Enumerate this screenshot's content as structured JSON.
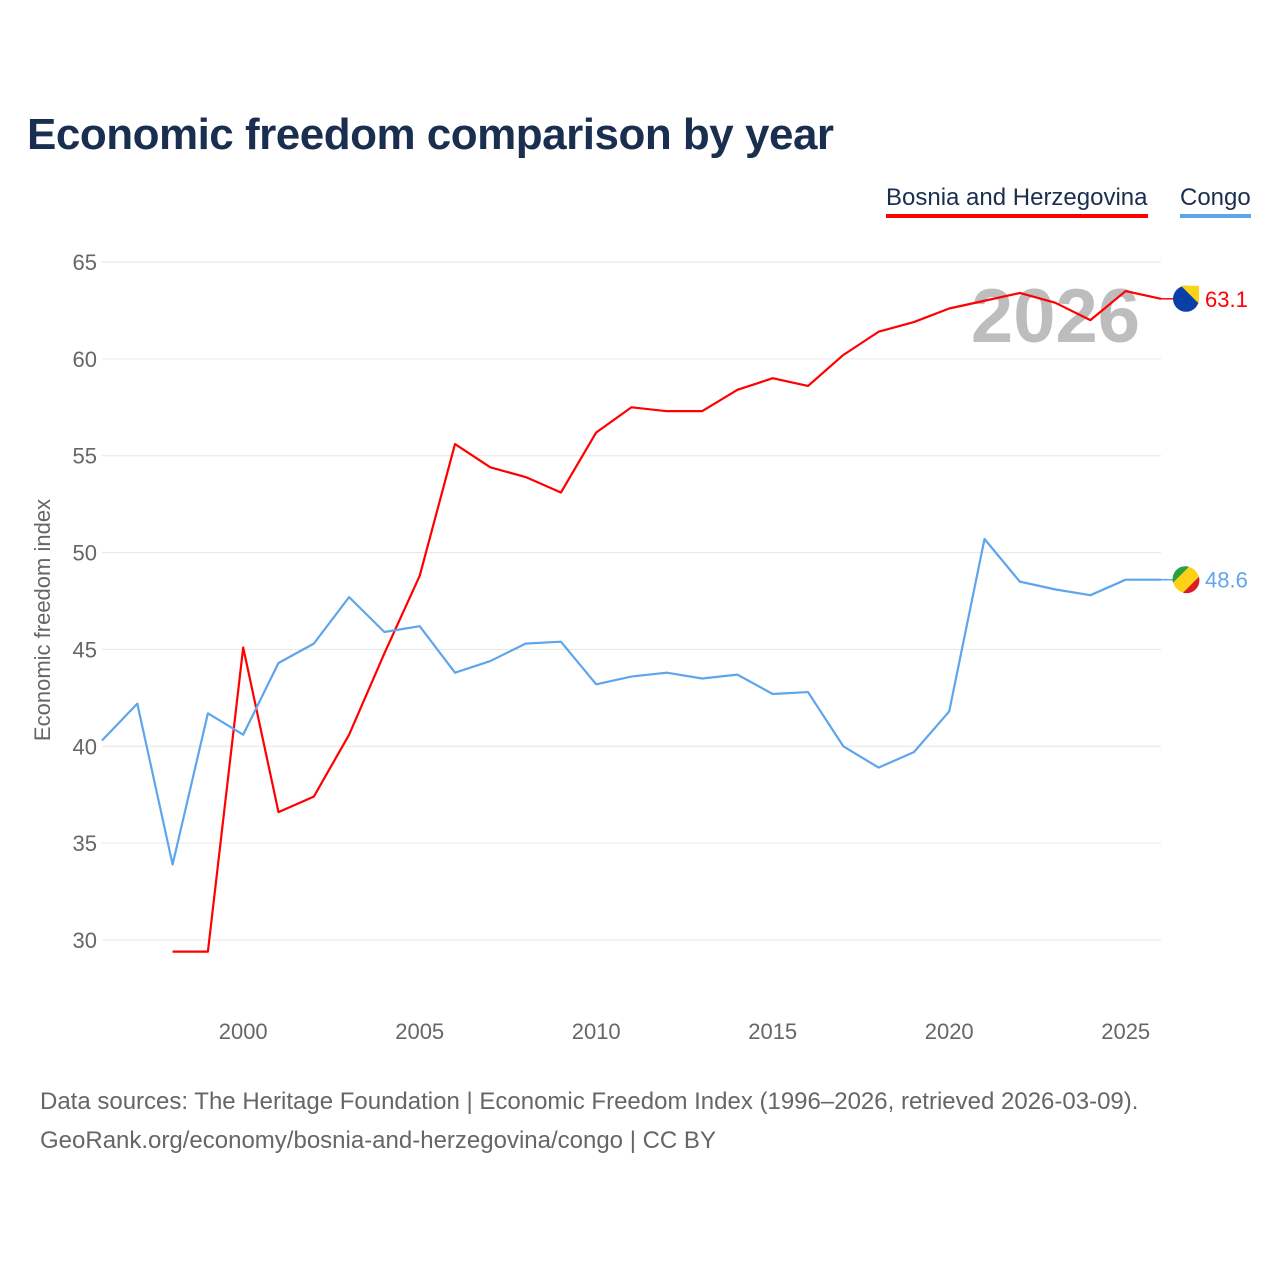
{
  "title": "Economic freedom comparison by year",
  "footer": {
    "line1": "Data sources: The Heritage Foundation | Economic Freedom Index (1996–2026, retrieved 2026-03-09).",
    "line2": "GeoRank.org/economy/bosnia-and-herzegovina/congo | CC BY"
  },
  "chart_data": {
    "type": "line",
    "title": "Economic freedom comparison by year",
    "xlabel": "",
    "ylabel": "Economic freedom index",
    "xlim": [
      1996,
      2026
    ],
    "ylim": [
      26.5,
      66
    ],
    "xticks": [
      2000,
      2005,
      2010,
      2015,
      2020,
      2025
    ],
    "yticks": [
      30,
      35,
      40,
      45,
      50,
      55,
      60,
      65
    ],
    "grid": true,
    "legend_placement": "top-right",
    "watermark_year": "2026",
    "series": [
      {
        "name": "Bosnia and Herzegovina",
        "color": "#ff0000",
        "end_label": "63.1",
        "x": [
          1998,
          1999,
          2000,
          2001,
          2002,
          2003,
          2004,
          2005,
          2006,
          2007,
          2008,
          2009,
          2010,
          2011,
          2012,
          2013,
          2014,
          2015,
          2016,
          2017,
          2018,
          2019,
          2020,
          2021,
          2022,
          2023,
          2024,
          2025,
          2026
        ],
        "values": [
          29.4,
          29.4,
          45.1,
          36.6,
          37.4,
          40.6,
          44.8,
          48.8,
          55.6,
          54.4,
          53.9,
          53.1,
          56.2,
          57.5,
          57.3,
          57.3,
          58.4,
          59.0,
          58.6,
          60.2,
          61.4,
          61.9,
          62.6,
          63.0,
          63.4,
          62.9,
          62.0,
          63.5,
          63.1
        ]
      },
      {
        "name": "Congo",
        "color": "#5fa5eb",
        "end_label": "48.6",
        "x": [
          1996,
          1997,
          1998,
          1999,
          2000,
          2001,
          2002,
          2003,
          2004,
          2005,
          2006,
          2007,
          2008,
          2009,
          2010,
          2011,
          2012,
          2013,
          2014,
          2015,
          2016,
          2017,
          2018,
          2019,
          2020,
          2021,
          2022,
          2023,
          2024,
          2025,
          2026
        ],
        "values": [
          40.3,
          42.2,
          33.9,
          41.7,
          40.6,
          44.3,
          45.3,
          47.7,
          45.9,
          46.2,
          43.8,
          44.4,
          45.3,
          45.4,
          43.2,
          43.6,
          43.8,
          43.5,
          43.7,
          42.7,
          42.8,
          40.0,
          38.9,
          39.7,
          41.8,
          50.7,
          48.5,
          48.1,
          47.8,
          48.6,
          48.6
        ]
      }
    ]
  }
}
